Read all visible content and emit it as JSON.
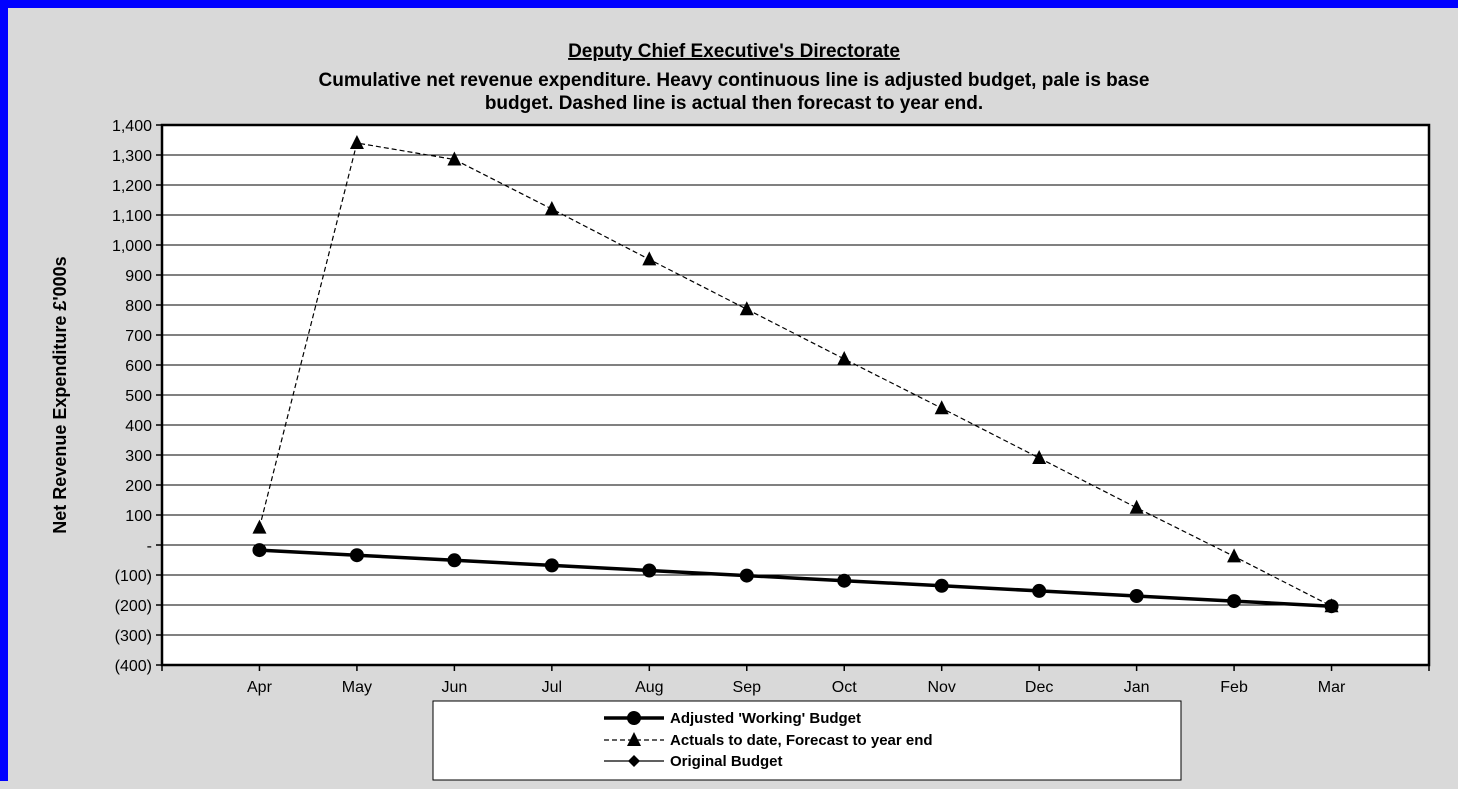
{
  "chart_data": {
    "type": "line",
    "title": "Deputy Chief Executive's Directorate",
    "subtitle_lines": [
      "Cumulative net revenue expenditure. Heavy continuous line is adjusted budget, pale is base",
      "budget. Dashed line is actual then forecast to year end."
    ],
    "xlabel": "",
    "ylabel": "Net Revenue Expenditure £'000s",
    "categories": [
      "Apr",
      "May",
      "Jun",
      "Jul",
      "Aug",
      "Sep",
      "Oct",
      "Nov",
      "Dec",
      "Jan",
      "Feb",
      "Mar"
    ],
    "ylim": [
      -400,
      1400
    ],
    "yticks": [
      1400,
      1300,
      1200,
      1100,
      1000,
      900,
      800,
      700,
      600,
      500,
      400,
      300,
      200,
      100,
      0,
      -100,
      -200,
      -300,
      -400
    ],
    "ytick_labels": [
      "1,400",
      "1,300",
      "1,200",
      "1,100",
      "1,000",
      "900",
      "800",
      "700",
      "600",
      "500",
      "400",
      "300",
      "200",
      "100",
      "-",
      "(100)",
      "(200)",
      "(300)",
      "(400)"
    ],
    "grid": true,
    "legend_position": "bottom",
    "series": [
      {
        "name": "Adjusted 'Working' Budget",
        "style": "heavy-solid",
        "marker": "circle",
        "color": "#000000",
        "values": [
          -17,
          -34,
          -51,
          -68,
          -85,
          -102,
          -119,
          -136,
          -153,
          -170,
          -187,
          -204
        ]
      },
      {
        "name": "Actuals to date, Forecast to year end",
        "style": "dashed",
        "marker": "triangle",
        "color": "#000000",
        "values": [
          58,
          1340,
          1285,
          1120,
          952,
          786,
          620,
          456,
          290,
          124,
          -38,
          -204
        ]
      },
      {
        "name": "Original Budget",
        "style": "thin-solid",
        "marker": "diamond",
        "color": "#000000",
        "values": [
          -17,
          -34,
          -51,
          -68,
          -85,
          -102,
          -119,
          -136,
          -153,
          -170,
          -187,
          -204
        ]
      }
    ]
  },
  "colors": {
    "frame_border": "#0000ff",
    "background": "#d9d9d9",
    "plot_area": "#ffffff",
    "gridline": "#000000"
  }
}
